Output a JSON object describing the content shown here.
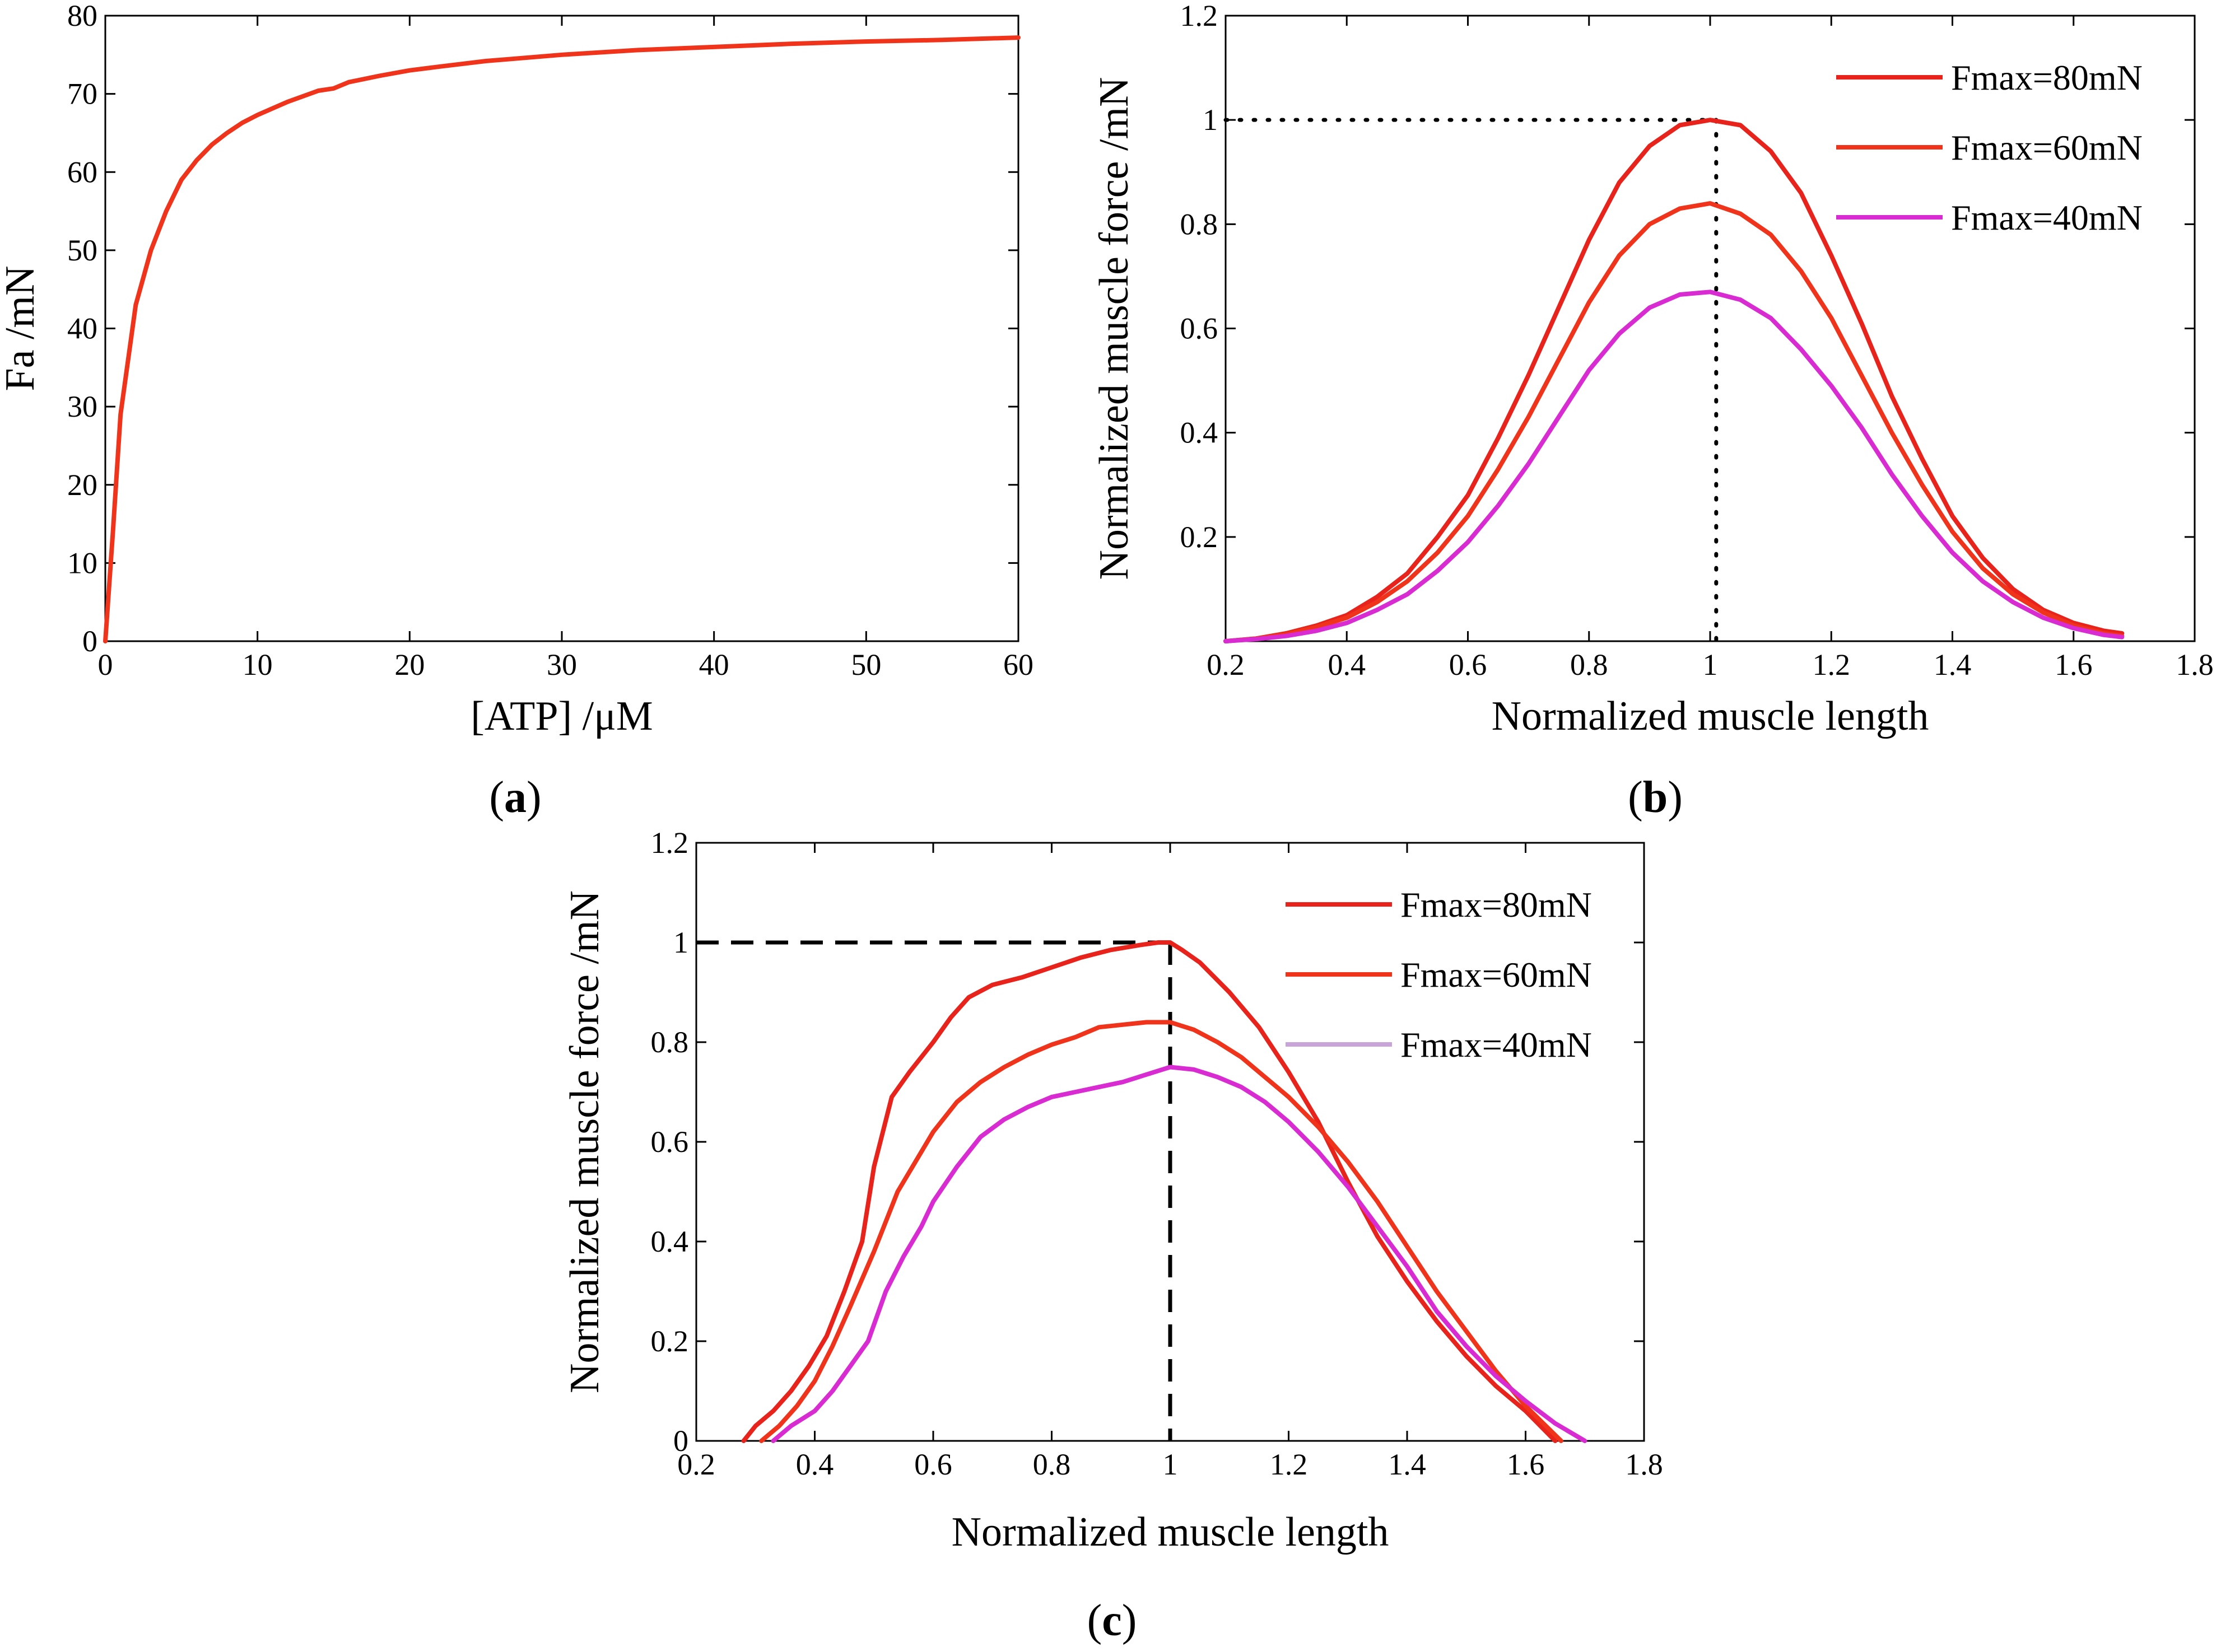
{
  "figure": {
    "panels": [
      {
        "id": "a",
        "label_open": "(",
        "label_letter": "a",
        "label_close": ")"
      },
      {
        "id": "b",
        "label_open": "(",
        "label_letter": "b",
        "label_close": ")"
      },
      {
        "id": "c",
        "label_open": "(",
        "label_letter": "c",
        "label_close": ")"
      }
    ]
  },
  "chart_data": [
    {
      "panel": "a",
      "type": "line",
      "title": "",
      "xlabel": "[ATP] /μM",
      "ylabel": "Fa /mN",
      "xlim": [
        0,
        60
      ],
      "ylim": [
        0,
        80
      ],
      "xticks": [
        "0",
        "10",
        "20",
        "30",
        "40",
        "50",
        "60"
      ],
      "yticks": [
        "0",
        "10",
        "20",
        "30",
        "40",
        "50",
        "60",
        "70",
        "80"
      ],
      "grid": false,
      "series": [
        {
          "color": "#f0341c",
          "x": [
            0,
            0.5,
            1,
            2,
            3,
            4,
            5,
            6,
            7,
            8,
            9,
            10,
            12,
            14,
            15,
            16,
            18,
            20,
            22,
            25,
            30,
            35,
            40,
            45,
            50,
            55,
            60
          ],
          "y": [
            0,
            14,
            29,
            43,
            50,
            55,
            59,
            61.5,
            63.5,
            65,
            66.3,
            67.3,
            69,
            70.4,
            70.7,
            71.5,
            72.3,
            73,
            73.5,
            74.2,
            75,
            75.6,
            76,
            76.4,
            76.7,
            76.9,
            77.2
          ]
        }
      ]
    },
    {
      "panel": "b",
      "type": "line",
      "title": "",
      "xlabel": "Normalized muscle length",
      "ylabel": "Normalized muscle force /mN",
      "xlim": [
        0.2,
        1.8
      ],
      "ylim": [
        0,
        1.2
      ],
      "xticks": [
        "0.2",
        "0.4",
        "0.6",
        "0.8",
        "1",
        "1.2",
        "1.4",
        "1.6",
        "1.8"
      ],
      "yticks": [
        "0.2",
        "0.4",
        "0.6",
        "0.8",
        "1",
        "1.2"
      ],
      "grid": false,
      "legend": "top-right",
      "reference_lines": {
        "style": "dotted",
        "x": 1.01,
        "y": 1
      },
      "series": [
        {
          "name": "Fmax=80mN",
          "color": "#e8231b",
          "x": [
            0.2,
            0.25,
            0.3,
            0.35,
            0.4,
            0.45,
            0.5,
            0.55,
            0.6,
            0.65,
            0.7,
            0.75,
            0.8,
            0.85,
            0.9,
            0.95,
            1.0,
            1.05,
            1.1,
            1.15,
            1.2,
            1.25,
            1.3,
            1.35,
            1.4,
            1.45,
            1.5,
            1.55,
            1.6,
            1.65,
            1.68
          ],
          "y": [
            0.0,
            0.005,
            0.015,
            0.03,
            0.05,
            0.085,
            0.13,
            0.2,
            0.28,
            0.39,
            0.51,
            0.64,
            0.77,
            0.88,
            0.95,
            0.99,
            1.0,
            0.99,
            0.94,
            0.86,
            0.74,
            0.61,
            0.47,
            0.35,
            0.24,
            0.16,
            0.1,
            0.06,
            0.035,
            0.02,
            0.015
          ]
        },
        {
          "name": "Fmax=60mN",
          "color": "#f0341c",
          "x": [
            0.2,
            0.25,
            0.3,
            0.35,
            0.4,
            0.45,
            0.5,
            0.55,
            0.6,
            0.65,
            0.7,
            0.75,
            0.8,
            0.85,
            0.9,
            0.95,
            1.0,
            1.05,
            1.1,
            1.15,
            1.2,
            1.25,
            1.3,
            1.35,
            1.4,
            1.45,
            1.5,
            1.55,
            1.6,
            1.65,
            1.68
          ],
          "y": [
            0.0,
            0.005,
            0.013,
            0.027,
            0.045,
            0.075,
            0.115,
            0.17,
            0.24,
            0.33,
            0.43,
            0.54,
            0.65,
            0.74,
            0.8,
            0.83,
            0.84,
            0.82,
            0.78,
            0.71,
            0.62,
            0.51,
            0.4,
            0.3,
            0.21,
            0.14,
            0.09,
            0.055,
            0.03,
            0.015,
            0.01
          ]
        },
        {
          "name": "Fmax=40mN",
          "color": "#d92bd2",
          "x": [
            0.2,
            0.25,
            0.3,
            0.35,
            0.4,
            0.45,
            0.5,
            0.55,
            0.6,
            0.65,
            0.7,
            0.75,
            0.8,
            0.85,
            0.9,
            0.95,
            1.0,
            1.05,
            1.1,
            1.15,
            1.2,
            1.25,
            1.3,
            1.35,
            1.4,
            1.45,
            1.5,
            1.55,
            1.6,
            1.65,
            1.68
          ],
          "y": [
            0.0,
            0.004,
            0.01,
            0.02,
            0.035,
            0.06,
            0.09,
            0.135,
            0.19,
            0.26,
            0.34,
            0.43,
            0.52,
            0.59,
            0.64,
            0.665,
            0.67,
            0.655,
            0.62,
            0.56,
            0.49,
            0.41,
            0.32,
            0.24,
            0.17,
            0.115,
            0.075,
            0.045,
            0.025,
            0.012,
            0.008
          ]
        }
      ]
    },
    {
      "panel": "c",
      "type": "line",
      "title": "",
      "xlabel": "Normalized muscle length",
      "ylabel": "Normalized muscle force /mN",
      "xlim": [
        0.2,
        1.8
      ],
      "ylim": [
        0,
        1.2
      ],
      "xticks": [
        "0.2",
        "0.4",
        "0.6",
        "0.8",
        "1",
        "1.2",
        "1.4",
        "1.6",
        "1.8"
      ],
      "yticks": [
        "0",
        "0.2",
        "0.4",
        "0.6",
        "0.8",
        "1",
        "1.2"
      ],
      "grid": false,
      "legend": "top-right",
      "reference_lines": {
        "style": "dashed",
        "x": 1.0,
        "y": 1
      },
      "series": [
        {
          "name": "Fmax=80mN",
          "color": "#e8231b",
          "x": [
            0.28,
            0.3,
            0.33,
            0.36,
            0.39,
            0.42,
            0.45,
            0.48,
            0.5,
            0.53,
            0.56,
            0.6,
            0.63,
            0.66,
            0.7,
            0.75,
            0.8,
            0.85,
            0.9,
            0.95,
            0.98,
            1.0,
            1.02,
            1.05,
            1.1,
            1.15,
            1.2,
            1.25,
            1.3,
            1.35,
            1.4,
            1.45,
            1.5,
            1.55,
            1.6,
            1.65
          ],
          "y": [
            0.0,
            0.03,
            0.06,
            0.1,
            0.15,
            0.21,
            0.3,
            0.4,
            0.55,
            0.69,
            0.74,
            0.8,
            0.85,
            0.89,
            0.915,
            0.93,
            0.95,
            0.97,
            0.985,
            0.995,
            1.0,
            1.0,
            0.985,
            0.96,
            0.9,
            0.83,
            0.74,
            0.64,
            0.52,
            0.41,
            0.32,
            0.24,
            0.17,
            0.11,
            0.06,
            0.0
          ]
        },
        {
          "name": "Fmax=60mN",
          "color": "#f0341c",
          "x": [
            0.31,
            0.34,
            0.37,
            0.4,
            0.43,
            0.46,
            0.5,
            0.54,
            0.57,
            0.6,
            0.64,
            0.68,
            0.72,
            0.76,
            0.8,
            0.84,
            0.88,
            0.92,
            0.96,
            1.0,
            1.04,
            1.08,
            1.12,
            1.16,
            1.2,
            1.25,
            1.3,
            1.35,
            1.4,
            1.45,
            1.5,
            1.55,
            1.6,
            1.66
          ],
          "y": [
            0.0,
            0.03,
            0.07,
            0.12,
            0.19,
            0.27,
            0.38,
            0.5,
            0.56,
            0.62,
            0.68,
            0.72,
            0.75,
            0.775,
            0.795,
            0.81,
            0.83,
            0.835,
            0.84,
            0.84,
            0.825,
            0.8,
            0.77,
            0.73,
            0.69,
            0.63,
            0.56,
            0.48,
            0.39,
            0.3,
            0.22,
            0.14,
            0.07,
            0.0
          ]
        },
        {
          "name": "Fmax=40mN",
          "color": "#d92bd2",
          "x": [
            0.33,
            0.36,
            0.4,
            0.43,
            0.46,
            0.49,
            0.52,
            0.55,
            0.58,
            0.6,
            0.64,
            0.68,
            0.72,
            0.76,
            0.8,
            0.84,
            0.88,
            0.92,
            0.96,
            1.0,
            1.04,
            1.08,
            1.12,
            1.16,
            1.2,
            1.25,
            1.3,
            1.35,
            1.4,
            1.45,
            1.5,
            1.55,
            1.6,
            1.65,
            1.7
          ],
          "y": [
            0.0,
            0.03,
            0.06,
            0.1,
            0.15,
            0.2,
            0.3,
            0.37,
            0.43,
            0.48,
            0.55,
            0.61,
            0.645,
            0.67,
            0.69,
            0.7,
            0.71,
            0.72,
            0.735,
            0.75,
            0.745,
            0.73,
            0.71,
            0.68,
            0.64,
            0.58,
            0.51,
            0.43,
            0.35,
            0.26,
            0.19,
            0.13,
            0.08,
            0.035,
            0.0
          ]
        }
      ]
    }
  ]
}
